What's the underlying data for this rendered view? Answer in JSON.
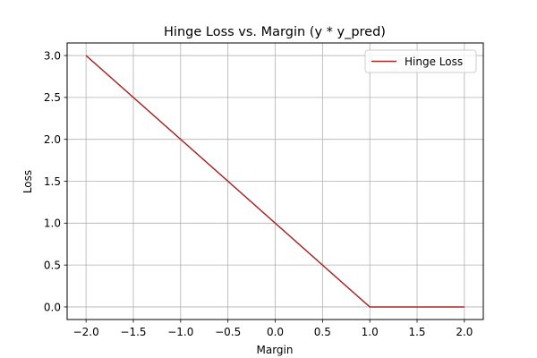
{
  "chart_data": {
    "type": "line",
    "title": "Hinge Loss vs. Margin (y * y_pred)",
    "xlabel": "Margin",
    "ylabel": "Loss",
    "xlim": [
      -2.2,
      2.2
    ],
    "ylim": [
      -0.15,
      3.15
    ],
    "xticks": [
      -2.0,
      -1.5,
      -1.0,
      -0.5,
      0.0,
      0.5,
      1.0,
      1.5,
      2.0
    ],
    "xtick_labels": [
      "−2.0",
      "−1.5",
      "−1.0",
      "−0.5",
      "0.0",
      "0.5",
      "1.0",
      "1.5",
      "2.0"
    ],
    "yticks": [
      0.0,
      0.5,
      1.0,
      1.5,
      2.0,
      2.5,
      3.0
    ],
    "ytick_labels": [
      "0.0",
      "0.5",
      "1.0",
      "1.5",
      "2.0",
      "2.5",
      "3.0"
    ],
    "grid": true,
    "legend_position": "top-right",
    "series": [
      {
        "name": "Hinge Loss",
        "color": "#a52a2a",
        "x": [
          -2.0,
          1.0,
          2.0
        ],
        "y": [
          3.0,
          0.0,
          0.0
        ]
      }
    ]
  }
}
